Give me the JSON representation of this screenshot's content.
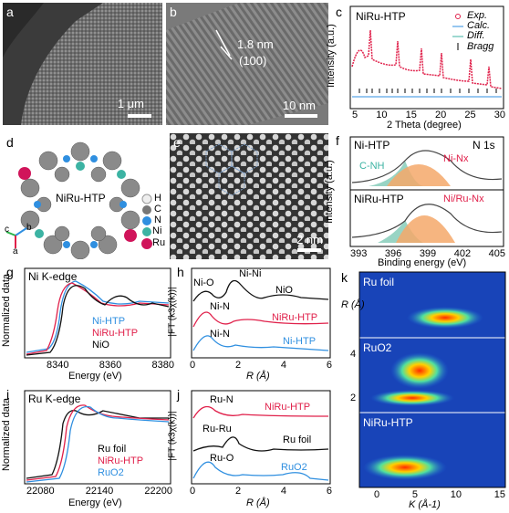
{
  "panels": {
    "a": {
      "letter": "a",
      "scale": "1 μm"
    },
    "b": {
      "letter": "b",
      "annotation_line1": "1.8 nm",
      "annotation_line2": "(100)",
      "scale": "10 nm"
    },
    "c": {
      "letter": "c",
      "title": "NiRu-HTP",
      "legend": [
        "Exp.",
        "Calc.",
        "Diff.",
        "Bragg"
      ],
      "ylabel": "Intensity (a.u.)",
      "xlabel": "2 Theta (degree)",
      "xticks": [
        "5",
        "10",
        "15",
        "20",
        "25",
        "30"
      ]
    },
    "d": {
      "letter": "d",
      "label": "NiRu-HTP",
      "legend": [
        "H",
        "C",
        "N",
        "Ni",
        "Ru"
      ],
      "axes": [
        "c",
        "b",
        "a"
      ]
    },
    "e": {
      "letter": "e",
      "scale": "2 nm"
    },
    "f": {
      "letter": "f",
      "corner": "N 1s",
      "top_sample": "Ni-HTP",
      "top_peak1": "C-NH",
      "top_peak2": "Ni-Nx",
      "bottom_sample": "NiRu-HTP",
      "bottom_peak": "Ni/Ru-Nx",
      "ylabel": "Intensity (a.u.)",
      "xlabel": "Binding energy (eV)",
      "xticks": [
        "393",
        "396",
        "399",
        "402",
        "405"
      ]
    },
    "g": {
      "letter": "g",
      "title": "Ni K-edge",
      "legend": [
        "Ni-HTP",
        "NiRu-HTP",
        "NiO"
      ],
      "ylabel": "Normalized data",
      "xlabel": "Energy (eV)",
      "xticks": [
        "8340",
        "8360",
        "8380"
      ]
    },
    "h": {
      "letter": "h",
      "peaks": [
        "Ni-O",
        "Ni-Ni",
        "Ni-N",
        "Ni-N"
      ],
      "curve_labels": [
        "NiO",
        "NiRu-HTP",
        "Ni-HTP"
      ],
      "ylabel": "|FT (k3χ(k))|",
      "xlabel": "R (Å)",
      "xticks": [
        "0",
        "2",
        "4",
        "6"
      ]
    },
    "i": {
      "letter": "i",
      "title": "Ru K-edge",
      "legend": [
        "Ru foil",
        "NiRu-HTP",
        "RuO2"
      ],
      "ylabel": "Normalized data",
      "xlabel": "Energy (eV)",
      "xticks": [
        "22080",
        "22140",
        "22200"
      ]
    },
    "j": {
      "letter": "j",
      "peaks": [
        "Ru-N",
        "Ru-Ru",
        "Ru-O"
      ],
      "curve_labels": [
        "NiRu-HTP",
        "Ru foil",
        "RuO2"
      ],
      "ylabel": "|FT (k3χ(k))|",
      "xlabel": "R (Å)",
      "xticks": [
        "0",
        "2",
        "4",
        "6"
      ]
    },
    "k": {
      "letter": "k",
      "strips": [
        "Ru foil",
        "RuO2",
        "NiRu-HTP"
      ],
      "ylabel": "R (Å)",
      "yticks": [
        "4",
        "2"
      ],
      "xlabel": "K (Å-1)",
      "xticks": [
        "0",
        "5",
        "10",
        "15"
      ]
    }
  },
  "colors": {
    "red": "#e0204a",
    "blue": "#2f8fe0",
    "black": "#111111",
    "teal": "#3cb3a3",
    "orange": "#f0a060"
  }
}
